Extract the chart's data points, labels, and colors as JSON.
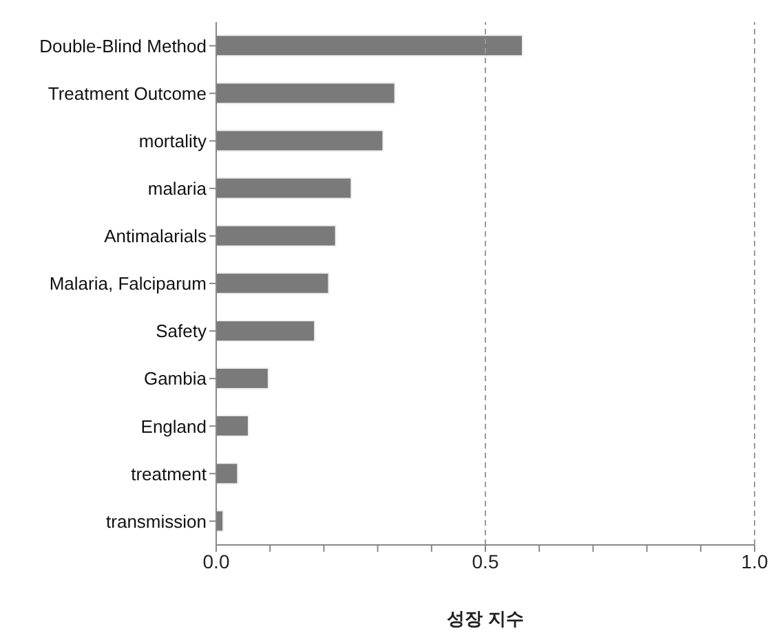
{
  "chart_data": {
    "type": "bar",
    "orientation": "horizontal",
    "xlabel": "성장 지수",
    "categories": [
      "Double-Blind Method",
      "Treatment Outcome",
      "mortality",
      "malaria",
      "Antimalarials",
      "Malaria, Falciparum",
      "Safety",
      "Gambia",
      "England",
      "treatment",
      "transmission"
    ],
    "values": [
      0.569,
      0.332,
      0.31,
      0.251,
      0.222,
      0.209,
      0.183,
      0.097,
      0.06,
      0.04,
      0.013
    ],
    "color": "#7a7a7a",
    "xlim": [
      0,
      1
    ],
    "xticks": [
      {
        "value": 0,
        "label": "0.0"
      },
      {
        "value": 0.1,
        "label": null
      },
      {
        "value": 0.2,
        "label": null
      },
      {
        "value": 0.3,
        "label": null
      },
      {
        "value": 0.4,
        "label": null
      },
      {
        "value": 0.5,
        "label": "0.5"
      },
      {
        "value": 0.6,
        "label": null
      },
      {
        "value": 0.7,
        "label": null
      },
      {
        "value": 0.8,
        "label": null
      },
      {
        "value": 0.9,
        "label": null
      },
      {
        "value": 1,
        "label": "1.0"
      }
    ],
    "grid": "x",
    "legend": false
  }
}
